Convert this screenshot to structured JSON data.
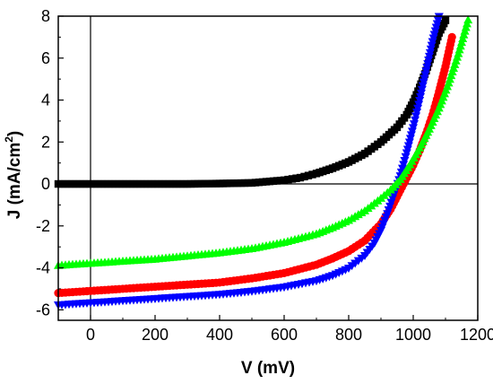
{
  "chart_data": {
    "type": "scatter",
    "title": "",
    "xlabel": "V (mV)",
    "ylabel_main": "J (mA/cm",
    "ylabel_sup": "2",
    "ylabel_close": ")",
    "xlim": [
      -100,
      1200
    ],
    "ylim": [
      -6.5,
      8
    ],
    "xticks": [
      0,
      200,
      400,
      600,
      800,
      1000,
      1200
    ],
    "xtick_labels": [
      "0",
      "200",
      "400",
      "600",
      "800",
      "1000",
      "1200"
    ],
    "yticks": [
      -6,
      -4,
      -2,
      0,
      2,
      4,
      6,
      8
    ],
    "ytick_labels": [
      "-6",
      "-4",
      "-2",
      "0",
      "2",
      "4",
      "6",
      "8"
    ],
    "grid": false,
    "reference_lines": {
      "x": 0,
      "y": 0
    },
    "series": [
      {
        "color": "#000000",
        "marker": "square",
        "x": [
          -100,
          0,
          100,
          200,
          300,
          400,
          500,
          600,
          650,
          700,
          750,
          800,
          850,
          900,
          950,
          980,
          1000,
          1020,
          1040,
          1060,
          1080,
          1100
        ],
        "y": [
          0,
          0,
          0,
          0,
          0,
          0.02,
          0.05,
          0.18,
          0.3,
          0.5,
          0.75,
          1.05,
          1.45,
          2.0,
          2.7,
          3.3,
          3.9,
          4.6,
          5.4,
          6.3,
          7.2,
          7.8
        ]
      },
      {
        "color": "#ff0000",
        "marker": "circle",
        "x": [
          -100,
          0,
          100,
          200,
          300,
          400,
          500,
          600,
          700,
          750,
          800,
          850,
          900,
          930,
          950,
          970,
          1000,
          1020,
          1040,
          1060,
          1080,
          1100,
          1120
        ],
        "y": [
          -5.2,
          -5.1,
          -5.0,
          -4.9,
          -4.8,
          -4.7,
          -4.5,
          -4.25,
          -3.85,
          -3.55,
          -3.2,
          -2.7,
          -1.9,
          -1.2,
          -0.6,
          0.0,
          0.9,
          1.6,
          2.4,
          3.3,
          4.4,
          5.6,
          7.0
        ]
      },
      {
        "color": "#0000ff",
        "marker": "triangle-down",
        "x": [
          -100,
          0,
          100,
          200,
          300,
          400,
          500,
          600,
          700,
          750,
          800,
          850,
          880,
          900,
          920,
          940,
          960,
          980,
          1000,
          1020,
          1040,
          1060,
          1080
        ],
        "y": [
          -5.75,
          -5.65,
          -5.55,
          -5.45,
          -5.35,
          -5.25,
          -5.1,
          -4.9,
          -4.6,
          -4.35,
          -4.0,
          -3.4,
          -2.8,
          -2.2,
          -1.4,
          -0.5,
          0.4,
          1.5,
          2.7,
          4.0,
          5.4,
          6.8,
          8.0
        ]
      },
      {
        "color": "#00ff00",
        "marker": "triangle-up",
        "x": [
          -100,
          0,
          100,
          200,
          300,
          400,
          500,
          600,
          700,
          750,
          800,
          850,
          900,
          930,
          960,
          990,
          1020,
          1050,
          1080,
          1110,
          1140,
          1170
        ],
        "y": [
          -3.9,
          -3.8,
          -3.7,
          -3.6,
          -3.45,
          -3.3,
          -3.1,
          -2.8,
          -2.4,
          -2.1,
          -1.75,
          -1.3,
          -0.7,
          -0.3,
          0.2,
          0.9,
          1.7,
          2.6,
          3.6,
          4.8,
          6.2,
          7.8
        ]
      }
    ]
  }
}
